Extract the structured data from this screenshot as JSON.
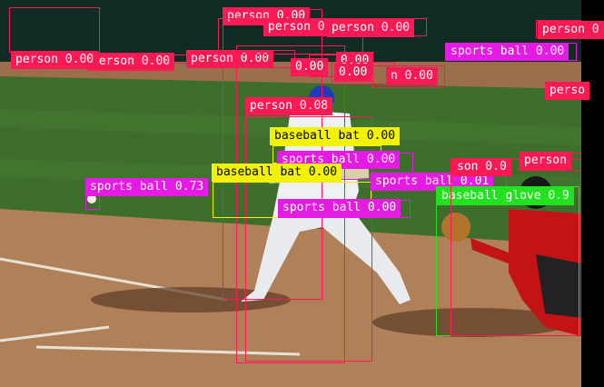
{
  "image": {
    "description_colors": {
      "grass": "#3b6b2a",
      "dirt": "#a87a55",
      "wall": "#0e2a22",
      "chalk": "#e8e2d6"
    }
  },
  "classes": {
    "person": "#ff1a55",
    "sports_ball": "#e31be3",
    "baseball_bat": "#f2f200",
    "baseball_glove": "#22e11f"
  },
  "detections": [
    {
      "label": "person 0.00",
      "color_key": "person"
    },
    {
      "label": "person 0.00",
      "color_key": "person"
    },
    {
      "label": "person 0.00",
      "color_key": "person"
    },
    {
      "label": "person 0.00",
      "color_key": "person"
    },
    {
      "label": "person 0.00",
      "color_key": "person"
    },
    {
      "label": "person 0.00",
      "color_key": "person"
    },
    {
      "label": "0.00",
      "color_key": "person"
    },
    {
      "label": "0.00",
      "color_key": "person"
    },
    {
      "label": "0.00",
      "color_key": "person"
    },
    {
      "label": "n 0.00",
      "color_key": "person"
    },
    {
      "label": "person 0.08",
      "color_key": "person"
    },
    {
      "label": "baseball bat 0.00",
      "color_key": "baseball_bat"
    },
    {
      "label": "sports ball 0.00",
      "color_key": "sports_ball"
    },
    {
      "label": "baseball bat 0.00",
      "color_key": "baseball_bat"
    },
    {
      "label": "sports ball 0.01",
      "color_key": "sports_ball"
    },
    {
      "label": "sports ball 0.00",
      "color_key": "sports_ball"
    },
    {
      "label": "sports ball 0.73",
      "color_key": "sports_ball"
    },
    {
      "label": "sports ball 0.00",
      "color_key": "sports_ball"
    },
    {
      "label": "baseball glove 0.9",
      "color_key": "baseball_glove"
    },
    {
      "label": "son 0.0",
      "color_key": "person"
    },
    {
      "label": "person 0",
      "color_key": "person"
    },
    {
      "label": "person",
      "color_key": "person"
    },
    {
      "label": "perso",
      "color_key": "person"
    }
  ]
}
